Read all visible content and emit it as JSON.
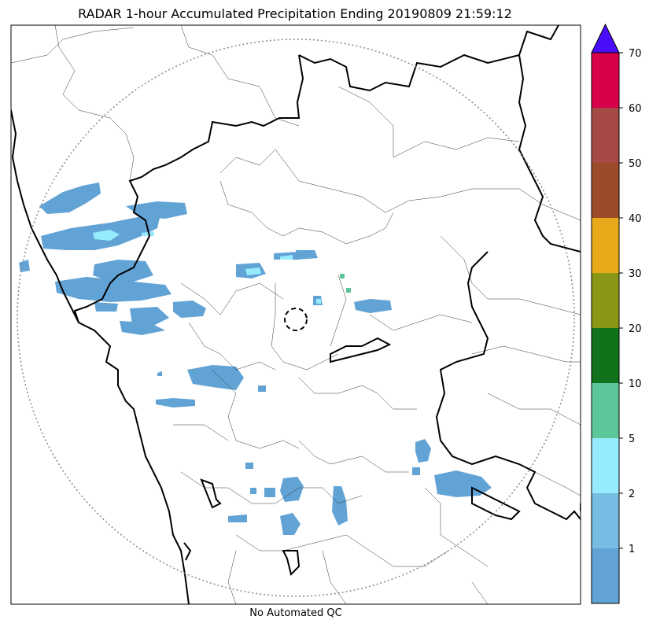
{
  "title": "RADAR 1-hour Accumulated Precipitation Ending 20190809 21:59:12",
  "caption": "No Automated QC",
  "colorbar": {
    "tick_labels": [
      "1",
      "2",
      "5",
      "10",
      "20",
      "30",
      "40",
      "50",
      "60",
      "70"
    ],
    "colors": [
      "#62a3d6",
      "#77bde3",
      "#96ecfd",
      "#5cc59a",
      "#10721a",
      "#8a9615",
      "#e8a91a",
      "#9b4b29",
      "#a64a45",
      "#d6014a"
    ],
    "extend_color": "#4a0dfb"
  },
  "map": {
    "radar_range_ring": "dotted",
    "radar_center_marker": "dashed-circle",
    "boundaries": [
      "state-boundary",
      "district-boundary",
      "coastline"
    ],
    "precip_legend_scale": "mm"
  }
}
